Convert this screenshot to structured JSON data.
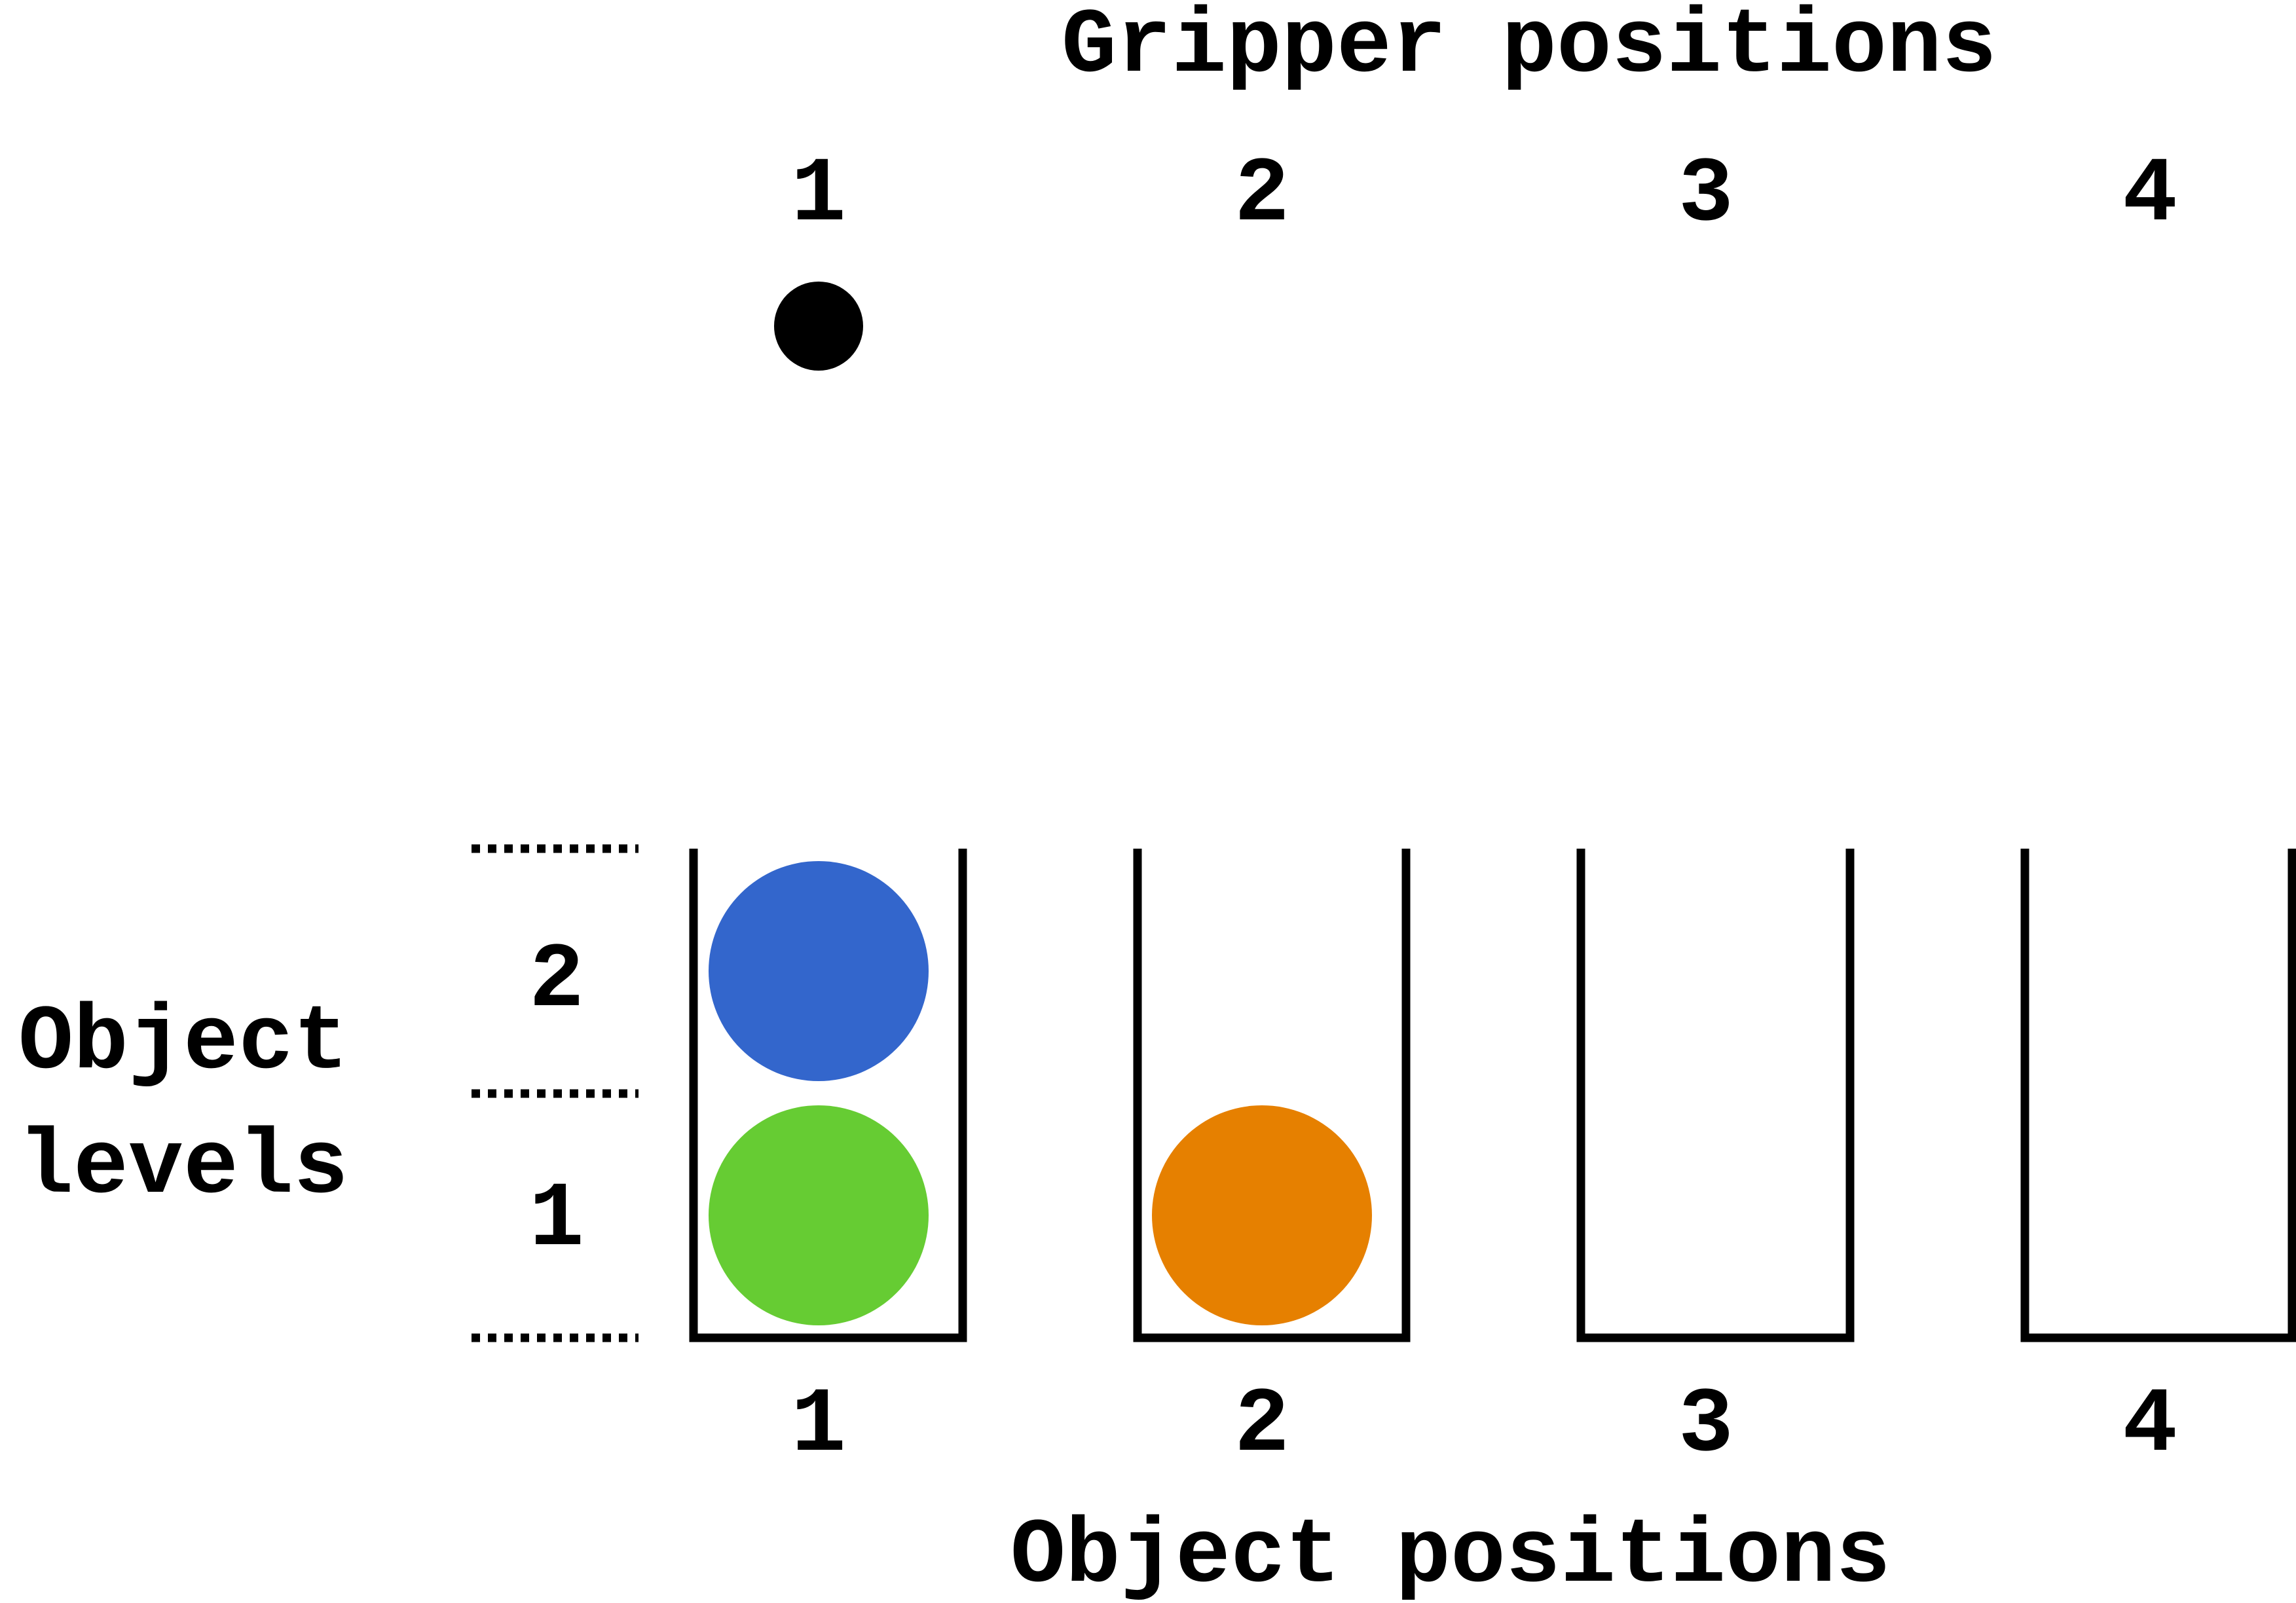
{
  "gripper": {
    "title": "Gripper positions",
    "positions": [
      "1",
      "2",
      "3",
      "4"
    ],
    "current_position": 1,
    "color": "#000000"
  },
  "object_levels": {
    "title_line1": "Object",
    "title_line2": "levels",
    "levels": [
      "1",
      "2"
    ]
  },
  "object_positions": {
    "title": "Object positions",
    "positions": [
      "1",
      "2",
      "3",
      "4"
    ]
  },
  "objects": [
    {
      "color_name": "green",
      "color": "#66CC33",
      "position": 1,
      "level": 1
    },
    {
      "color_name": "blue",
      "color": "#3366CC",
      "position": 1,
      "level": 2
    },
    {
      "color_name": "orange",
      "color": "#E68000",
      "position": 2,
      "level": 1
    }
  ]
}
